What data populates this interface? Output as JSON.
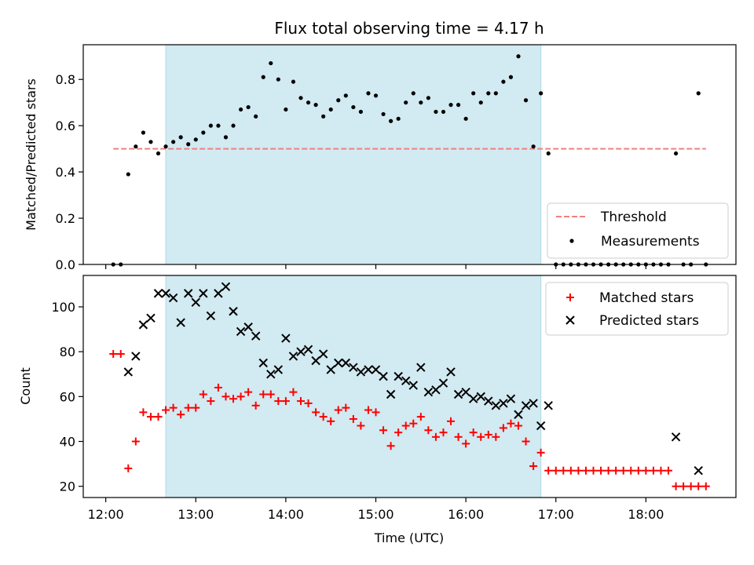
{
  "chart_data": [
    {
      "type": "scatter",
      "title": "Flux total observing time = 4.17 h",
      "xlabel": "",
      "ylabel": "Matched/Predicted stars",
      "xlim": [
        "11:45",
        "19:00"
      ],
      "ylim": [
        0,
        0.95
      ],
      "y_ticks": [
        0.0,
        0.2,
        0.4,
        0.6,
        0.8
      ],
      "y_tick_labels": [
        "0.0",
        "0.2",
        "0.4",
        "0.6",
        "0.8"
      ],
      "shaded_interval": [
        "12:40",
        "16:50"
      ],
      "threshold": {
        "name": "Threshold",
        "value": 0.5,
        "x_range": [
          "12:05",
          "18:40"
        ],
        "color": "#f08080"
      },
      "measurements": {
        "name": "Measurements",
        "color": "#000000",
        "x": [
          "12:05",
          "12:10",
          "12:15",
          "12:20",
          "12:25",
          "12:30",
          "12:35",
          "12:40",
          "12:45",
          "12:50",
          "12:55",
          "13:00",
          "13:05",
          "13:10",
          "13:15",
          "13:20",
          "13:25",
          "13:30",
          "13:35",
          "13:40",
          "13:45",
          "13:50",
          "13:55",
          "14:00",
          "14:05",
          "14:10",
          "14:15",
          "14:20",
          "14:25",
          "14:30",
          "14:35",
          "14:40",
          "14:45",
          "14:50",
          "14:55",
          "15:00",
          "15:05",
          "15:10",
          "15:15",
          "15:20",
          "15:25",
          "15:30",
          "15:35",
          "15:40",
          "15:45",
          "15:50",
          "15:55",
          "16:00",
          "16:05",
          "16:10",
          "16:15",
          "16:20",
          "16:25",
          "16:30",
          "16:35",
          "16:40",
          "16:45",
          "16:50",
          "16:55",
          "17:00",
          "17:05",
          "17:10",
          "17:15",
          "17:20",
          "17:25",
          "17:30",
          "17:35",
          "17:40",
          "17:45",
          "17:50",
          "17:55",
          "18:00",
          "18:05",
          "18:10",
          "18:15",
          "18:20",
          "18:25",
          "18:30",
          "18:35",
          "18:40"
        ],
        "y": [
          0.0,
          0.0,
          0.39,
          0.51,
          0.57,
          0.53,
          0.48,
          0.51,
          0.53,
          0.55,
          0.52,
          0.54,
          0.57,
          0.6,
          0.6,
          0.55,
          0.6,
          0.67,
          0.68,
          0.64,
          0.81,
          0.87,
          0.8,
          0.67,
          0.79,
          0.72,
          0.7,
          0.69,
          0.64,
          0.67,
          0.71,
          0.73,
          0.68,
          0.66,
          0.74,
          0.73,
          0.65,
          0.62,
          0.63,
          0.7,
          0.74,
          0.7,
          0.72,
          0.66,
          0.66,
          0.69,
          0.69,
          0.63,
          0.74,
          0.7,
          0.74,
          0.74,
          0.79,
          0.81,
          0.9,
          0.71,
          0.51,
          0.74,
          0.48,
          0.0,
          0.0,
          0.0,
          0.0,
          0.0,
          0.0,
          0.0,
          0.0,
          0.0,
          0.0,
          0.0,
          0.0,
          0.0,
          0.0,
          0.0,
          0.0,
          0.48,
          0.0,
          0.0,
          0.74,
          0.0
        ]
      },
      "legend": {
        "placement": "lower-right",
        "entries": [
          "Threshold",
          "Measurements"
        ]
      }
    },
    {
      "type": "scatter",
      "title": "",
      "xlabel": "Time (UTC)",
      "ylabel": "Count",
      "xlim": [
        "11:45",
        "19:00"
      ],
      "ylim": [
        15,
        114
      ],
      "x_ticks": [
        "12:00",
        "13:00",
        "14:00",
        "15:00",
        "16:00",
        "17:00",
        "18:00"
      ],
      "y_ticks": [
        20,
        40,
        60,
        80,
        100
      ],
      "y_tick_labels": [
        "20",
        "40",
        "60",
        "80",
        "100"
      ],
      "shaded_interval": [
        "12:40",
        "16:50"
      ],
      "series": [
        {
          "name": "Matched stars",
          "marker": "plus",
          "color": "#ff0000",
          "x": [
            "12:05",
            "12:10",
            "12:15",
            "12:20",
            "12:25",
            "12:30",
            "12:35",
            "12:40",
            "12:45",
            "12:50",
            "12:55",
            "13:00",
            "13:05",
            "13:10",
            "13:15",
            "13:20",
            "13:25",
            "13:30",
            "13:35",
            "13:40",
            "13:45",
            "13:50",
            "13:55",
            "14:00",
            "14:05",
            "14:10",
            "14:15",
            "14:20",
            "14:25",
            "14:30",
            "14:35",
            "14:40",
            "14:45",
            "14:50",
            "14:55",
            "15:00",
            "15:05",
            "15:10",
            "15:15",
            "15:20",
            "15:25",
            "15:30",
            "15:35",
            "15:40",
            "15:45",
            "15:50",
            "15:55",
            "16:00",
            "16:05",
            "16:10",
            "16:15",
            "16:20",
            "16:25",
            "16:30",
            "16:35",
            "16:40",
            "16:45",
            "16:50",
            "16:55",
            "17:00",
            "17:05",
            "17:10",
            "17:15",
            "17:20",
            "17:25",
            "17:30",
            "17:35",
            "17:40",
            "17:45",
            "17:50",
            "17:55",
            "18:00",
            "18:05",
            "18:10",
            "18:15",
            "18:20",
            "18:25",
            "18:30",
            "18:35",
            "18:40"
          ],
          "y": [
            79,
            79,
            28,
            40,
            53,
            51,
            51,
            54,
            55,
            52,
            55,
            55,
            61,
            58,
            64,
            60,
            59,
            60,
            62,
            56,
            61,
            61,
            58,
            58,
            62,
            58,
            57,
            53,
            51,
            49,
            54,
            55,
            50,
            47,
            54,
            53,
            45,
            38,
            44,
            47,
            48,
            51,
            45,
            42,
            44,
            49,
            42,
            39,
            44,
            42,
            43,
            42,
            46,
            48,
            47,
            40,
            29,
            35,
            27,
            27,
            27,
            27,
            27,
            27,
            27,
            27,
            27,
            27,
            27,
            27,
            27,
            27,
            27,
            27,
            27,
            20,
            20,
            20,
            20,
            20
          ]
        },
        {
          "name": "Predicted stars",
          "marker": "x",
          "color": "#000000",
          "x": [
            "12:15",
            "12:20",
            "12:25",
            "12:30",
            "12:35",
            "12:40",
            "12:45",
            "12:50",
            "12:55",
            "13:00",
            "13:05",
            "13:10",
            "13:15",
            "13:20",
            "13:25",
            "13:30",
            "13:35",
            "13:40",
            "13:45",
            "13:50",
            "13:55",
            "14:00",
            "14:05",
            "14:10",
            "14:15",
            "14:20",
            "14:25",
            "14:30",
            "14:35",
            "14:40",
            "14:45",
            "14:50",
            "14:55",
            "15:00",
            "15:05",
            "15:10",
            "15:15",
            "15:20",
            "15:25",
            "15:30",
            "15:35",
            "15:40",
            "15:45",
            "15:50",
            "15:55",
            "16:00",
            "16:05",
            "16:10",
            "16:15",
            "16:20",
            "16:25",
            "16:30",
            "16:35",
            "16:40",
            "16:45",
            "16:50",
            "16:55",
            "18:20",
            "18:35"
          ],
          "y": [
            71,
            78,
            92,
            95,
            106,
            106,
            104,
            93,
            106,
            102,
            106,
            96,
            106,
            109,
            98,
            89,
            91,
            87,
            75,
            70,
            72,
            86,
            78,
            80,
            81,
            76,
            79,
            72,
            75,
            75,
            73,
            71,
            72,
            72,
            69,
            61,
            69,
            67,
            65,
            73,
            62,
            63,
            66,
            71,
            61,
            62,
            59,
            60,
            58,
            56,
            57,
            59,
            52,
            56,
            57,
            47,
            56,
            42,
            27
          ]
        }
      ],
      "legend": {
        "placement": "upper-right",
        "entries": [
          "Matched stars",
          "Predicted stars"
        ]
      }
    }
  ],
  "colors": {
    "shade": "#add8e6",
    "threshold": "#f08080",
    "matched": "#ff0000",
    "predicted": "#000000"
  }
}
